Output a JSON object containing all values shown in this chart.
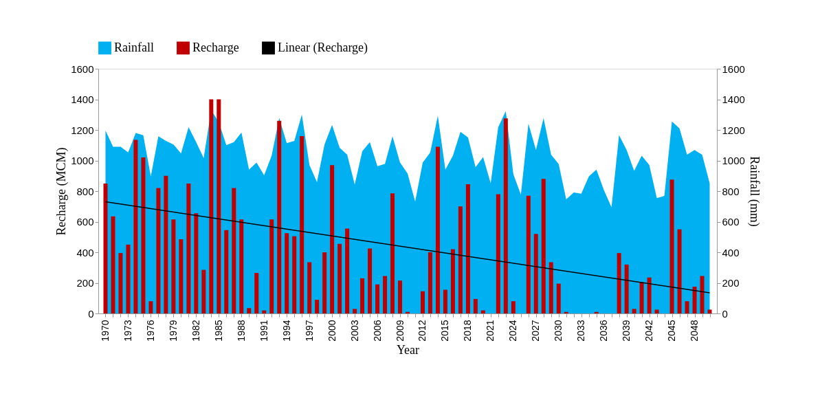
{
  "chart_data": {
    "type": "bar",
    "xlabel": "Year",
    "ylabel": "Recharge (MCM)",
    "y2label": "Rainfall (mm)",
    "x": [
      1970,
      1971,
      1972,
      1973,
      1974,
      1975,
      1976,
      1977,
      1978,
      1979,
      1980,
      1981,
      1982,
      1983,
      1984,
      1985,
      1986,
      1987,
      1988,
      1989,
      1990,
      1991,
      1992,
      1993,
      1994,
      1995,
      1996,
      1997,
      1998,
      1999,
      2000,
      2001,
      2002,
      2003,
      2004,
      2005,
      2006,
      2007,
      2008,
      2009,
      2010,
      2011,
      2012,
      2013,
      2014,
      2015,
      2016,
      2017,
      2018,
      2019,
      2020,
      2021,
      2022,
      2023,
      2024,
      2025,
      2026,
      2027,
      2028,
      2029,
      2030,
      2031,
      2032,
      2033,
      2034,
      2035,
      2036,
      2037,
      2038,
      2039,
      2040,
      2041,
      2042,
      2043,
      2044,
      2045,
      2046,
      2047,
      2048,
      2049,
      2050
    ],
    "xlim": [
      1969.5,
      2050.5
    ],
    "xticks": [
      1970,
      {
        "value": 1971,
        "label": null
      },
      {
        "value": 1972,
        "label": null
      },
      1973,
      {
        "value": 1974,
        "label": null
      },
      {
        "value": 1975,
        "label": null
      },
      1976,
      {
        "value": 1977,
        "label": null
      },
      {
        "value": 1978,
        "label": null
      },
      1979,
      {
        "value": 1980,
        "label": null
      },
      {
        "value": 1981,
        "label": null
      },
      1982,
      {
        "value": 1983,
        "label": null
      },
      {
        "value": 1984,
        "label": null
      },
      1985,
      {
        "value": 1986,
        "label": null
      },
      {
        "value": 1987,
        "label": null
      },
      1988,
      {
        "value": 1989,
        "label": null
      },
      {
        "value": 1990,
        "label": null
      },
      1991,
      {
        "value": 1992,
        "label": null
      },
      {
        "value": 1993,
        "label": null
      },
      1994,
      {
        "value": 1995,
        "label": null
      },
      {
        "value": 1996,
        "label": null
      },
      1997,
      {
        "value": 1998,
        "label": null
      },
      {
        "value": 1999,
        "label": null
      },
      2000,
      {
        "value": 2001,
        "label": null
      },
      {
        "value": 2002,
        "label": null
      },
      2003,
      {
        "value": 2004,
        "label": null
      },
      {
        "value": 2005,
        "label": null
      },
      2006,
      {
        "value": 2007,
        "label": null
      },
      {
        "value": 2008,
        "label": null
      },
      2009,
      {
        "value": 2010,
        "label": null
      },
      {
        "value": 2011,
        "label": null
      },
      2012,
      {
        "value": 2013,
        "label": null
      },
      {
        "value": 2014,
        "label": null
      },
      2015,
      {
        "value": 2016,
        "label": null
      },
      {
        "value": 2017,
        "label": null
      },
      2018,
      {
        "value": 2019,
        "label": null
      },
      {
        "value": 2020,
        "label": null
      },
      2021,
      {
        "value": 2022,
        "label": null
      },
      {
        "value": 2023,
        "label": null
      },
      2024,
      {
        "value": 2025,
        "label": null
      },
      {
        "value": 2026,
        "label": null
      },
      2027,
      {
        "value": 2028,
        "label": null
      },
      {
        "value": 2029,
        "label": null
      },
      2030,
      {
        "value": 2031,
        "label": null
      },
      {
        "value": 2032,
        "label": null
      },
      2033,
      {
        "value": 2034,
        "label": null
      },
      {
        "value": 2035,
        "label": null
      },
      2036,
      {
        "value": 2037,
        "label": null
      },
      {
        "value": 2038,
        "label": null
      },
      2039,
      {
        "value": 2040,
        "label": null
      },
      {
        "value": 2041,
        "label": null
      },
      2042,
      {
        "value": 2043,
        "label": null
      },
      {
        "value": 2044,
        "label": null
      },
      2045,
      {
        "value": 2046,
        "label": null
      },
      {
        "value": 2047,
        "label": null
      },
      2048,
      {
        "value": 2049,
        "label": null
      },
      {
        "value": 2050,
        "label": null
      }
    ],
    "ylim": [
      0,
      1600
    ],
    "yticks": [
      0,
      200,
      400,
      600,
      800,
      1000,
      1200,
      1400,
      1600
    ],
    "y2lim": [
      0,
      1600
    ],
    "y2ticks": [
      0,
      200,
      400,
      600,
      800,
      1000,
      1200,
      1400,
      1600
    ],
    "grid": false,
    "legend": "top",
    "series": [
      {
        "name": "Rainfall",
        "type": "area",
        "axis": "y2",
        "color": "#00b0f0",
        "values": [
          1195,
          1090,
          1090,
          1053,
          1180,
          1165,
          896,
          1158,
          1128,
          1105,
          1046,
          1218,
          1120,
          1016,
          1330,
          1250,
          1100,
          1120,
          1183,
          941,
          986,
          903,
          1031,
          1278,
          1113,
          1128,
          1300,
          971,
          858,
          1105,
          1233,
          1083,
          1038,
          843,
          1061,
          1120,
          963,
          978,
          1158,
          986,
          915,
          731,
          986,
          1053,
          1293,
          941,
          1031,
          1188,
          1151,
          956,
          1023,
          851,
          1218,
          1323,
          911,
          776,
          1240,
          1068,
          1278,
          1038,
          978,
          746,
          791,
          783,
          896,
          941,
          806,
          694,
          1166,
          1068,
          933,
          1031,
          971,
          754,
          769,
          1255,
          1210,
          1038,
          1068,
          1038,
          851
        ]
      },
      {
        "name": "Recharge",
        "color": "#c00000",
        "values": [
          850,
          635,
          395,
          450,
          1135,
          1020,
          80,
          820,
          900,
          615,
          485,
          850,
          655,
          285,
          1400,
          1400,
          545,
          820,
          615,
          35,
          265,
          20,
          615,
          1260,
          525,
          505,
          1160,
          335,
          90,
          400,
          970,
          455,
          555,
          30,
          230,
          425,
          190,
          245,
          785,
          215,
          10,
          0,
          145,
          400,
          1090,
          155,
          420,
          700,
          845,
          95,
          20,
          0,
          780,
          1275,
          80,
          0,
          770,
          520,
          880,
          335,
          195,
          10,
          0,
          0,
          0,
          10,
          0,
          0,
          395,
          320,
          30,
          205,
          235,
          25,
          0,
          875,
          550,
          80,
          175,
          245,
          25
        ]
      },
      {
        "name": "Linear (Recharge)",
        "type": "line",
        "color": "#000000",
        "x": [
          1970,
          2050
        ],
        "values": [
          730,
          135
        ]
      }
    ]
  }
}
